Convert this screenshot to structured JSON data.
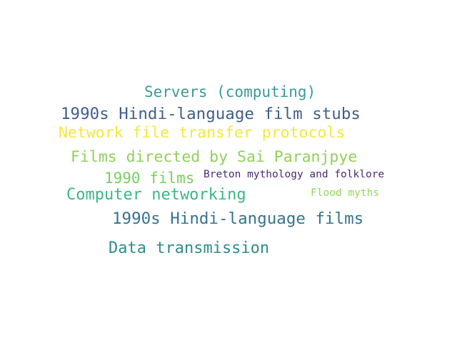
{
  "words": [
    {
      "text": "Servers (computing)",
      "color": "#3a9a9a"
    },
    {
      "text": "1990s Hindi-language film stubs",
      "color": "#3f5f8e"
    },
    {
      "text": "Network file transfer protocols",
      "color": "#f5e83a"
    },
    {
      "text": "Films directed by Sai Paranjpye",
      "color": "#8fd15a"
    },
    {
      "text": "1990 films",
      "color": "#78d060"
    },
    {
      "text": "Breton mythology and folklore",
      "color": "#4a2a70"
    },
    {
      "text": "Computer networking",
      "color": "#3ab883"
    },
    {
      "text": "Flood myths",
      "color": "#8ed85a"
    },
    {
      "text": "1990s Hindi-language films",
      "color": "#34748e"
    },
    {
      "text": "Data transmission",
      "color": "#2f8c8c"
    }
  ]
}
